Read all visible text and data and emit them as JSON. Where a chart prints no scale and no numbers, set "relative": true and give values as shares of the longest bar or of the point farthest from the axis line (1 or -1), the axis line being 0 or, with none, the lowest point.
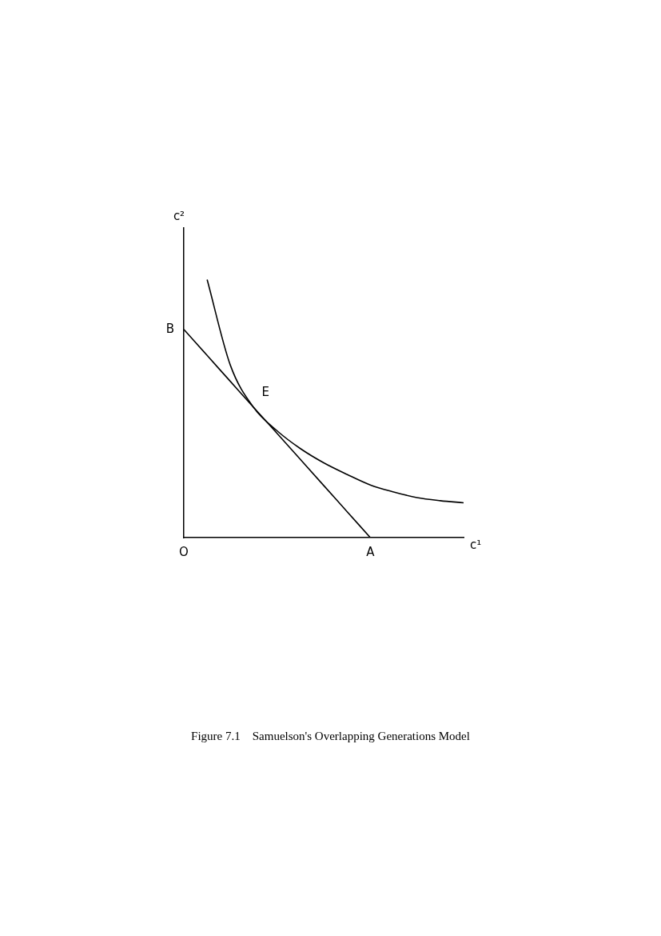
{
  "chart_data": {
    "type": "line",
    "title": "Figure 7.1    Samuelson's Overlapping Generations Model",
    "xlabel": "c¹",
    "ylabel": "c²",
    "relative": true,
    "tick_labels": "x",
    "grid": false,
    "legend": false,
    "marker": "none",
    "line_style": "solid",
    "categories": [
      "O",
      null,
      null,
      null,
      null,
      null,
      null,
      null,
      "A",
      null,
      null,
      null,
      null
    ],
    "series": [
      {
        "color": "#000000",
        "values": [
          0.807,
          0.706,
          0.605,
          0.504,
          0.404,
          0.303,
          0.202,
          0.101,
          0,
          null,
          null,
          null,
          null
        ]
      },
      {
        "color": "#000000",
        "values": [
          null,
          1.0,
          0.667,
          0.504,
          0.414,
          0.345,
          0.29,
          0.245,
          0.204,
          0.177,
          0.155,
          0.143,
          0.135
        ]
      }
    ],
    "annotations": [
      "B",
      "E"
    ]
  }
}
